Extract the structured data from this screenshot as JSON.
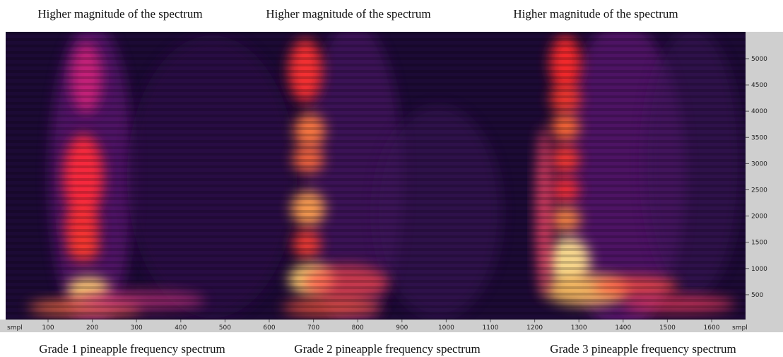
{
  "top_labels": [
    "Higher magnitude of the spectrum",
    "Higher magnitude of the spectrum",
    "Higher magnitude of the spectrum"
  ],
  "captions": [
    "Grade 1 pineapple frequency spectrum",
    "Grade 2 pineapple frequency spectrum",
    "Grade 3 pineapple frequency spectrum"
  ],
  "x_axis": {
    "unit": "smpl",
    "ticks": [
      100,
      200,
      300,
      400,
      500,
      600,
      700,
      800,
      900,
      1000,
      1100,
      1200,
      1300,
      1400,
      1500,
      1600
    ]
  },
  "y_axis": {
    "ticks": [
      500,
      1000,
      1500,
      2000,
      2500,
      3000,
      3500,
      4000,
      4500,
      5000
    ]
  }
}
